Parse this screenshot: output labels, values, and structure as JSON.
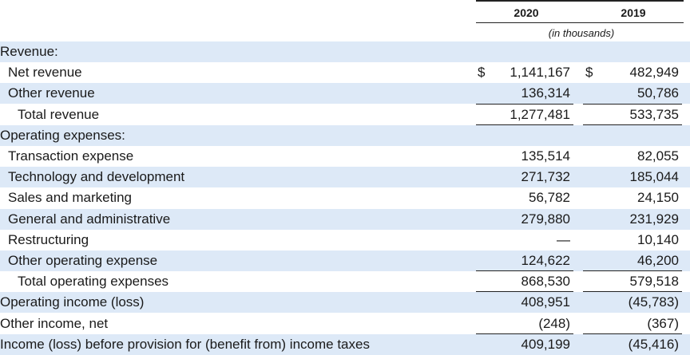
{
  "header": {
    "year1": "2020",
    "year2": "2019",
    "units": "(in thousands)"
  },
  "rows": [
    {
      "label": "Revenue:",
      "v1": "",
      "v2": "",
      "shade": true,
      "indent": 0
    },
    {
      "label": "Net revenue",
      "v1": "1,141,167",
      "v2": "482,949",
      "d1": "$",
      "d2": "$",
      "shade": false,
      "indent": 1
    },
    {
      "label": "Other revenue",
      "v1": "136,314",
      "v2": "50,786",
      "shade": true,
      "indent": 1
    },
    {
      "label": "Total revenue",
      "v1": "1,277,481",
      "v2": "533,735",
      "shade": false,
      "indent": 2
    },
    {
      "label": "Operating expenses:",
      "v1": "",
      "v2": "",
      "shade": true,
      "indent": 0
    },
    {
      "label": "Transaction expense",
      "v1": "135,514",
      "v2": "82,055",
      "shade": false,
      "indent": 1
    },
    {
      "label": "Technology and development",
      "v1": "271,732",
      "v2": "185,044",
      "shade": true,
      "indent": 1
    },
    {
      "label": "Sales and marketing",
      "v1": "56,782",
      "v2": "24,150",
      "shade": false,
      "indent": 1
    },
    {
      "label": "General and administrative",
      "v1": "279,880",
      "v2": "231,929",
      "shade": true,
      "indent": 1
    },
    {
      "label": "Restructuring",
      "v1": "—",
      "v2": "10,140",
      "shade": false,
      "indent": 1
    },
    {
      "label": "Other operating expense",
      "v1": "124,622",
      "v2": "46,200",
      "shade": true,
      "indent": 1
    },
    {
      "label": "Total operating expenses",
      "v1": "868,530",
      "v2": "579,518",
      "shade": false,
      "indent": 2
    },
    {
      "label": "Operating income (loss)",
      "v1": "408,951",
      "v2": "(45,783)",
      "shade": true,
      "indent": 0
    },
    {
      "label": "Other income, net",
      "v1": "(248)",
      "v2": "(367)",
      "shade": false,
      "indent": 0
    },
    {
      "label": "Income (loss) before provision for (benefit from) income taxes",
      "v1": "409,199",
      "v2": "(45,416)",
      "shade": true,
      "indent": 0
    }
  ]
}
